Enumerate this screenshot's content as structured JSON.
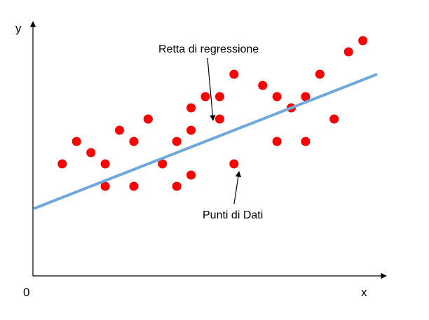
{
  "labels": {
    "y_axis": "y",
    "x_axis": "x",
    "origin": "0",
    "regression_line": "Retta di regressione",
    "data_points": "Punti di Dati"
  },
  "colors": {
    "point": "#ff0000",
    "line": "#6fa8dc",
    "axes": "#000000"
  },
  "chart_data": {
    "type": "scatter",
    "title": "",
    "xlabel": "x",
    "ylabel": "y",
    "grid": false,
    "points": [
      [
        1,
        2
      ],
      [
        1.5,
        3
      ],
      [
        2,
        2.5
      ],
      [
        2.5,
        2
      ],
      [
        3,
        3.5
      ],
      [
        3.5,
        3
      ],
      [
        4,
        4
      ],
      [
        4,
        4
      ],
      [
        2.5,
        1
      ],
      [
        3.5,
        1
      ],
      [
        4.5,
        2
      ],
      [
        5,
        3
      ],
      [
        5,
        1
      ],
      [
        5.5,
        1.5
      ],
      [
        5.5,
        3.5
      ],
      [
        5.5,
        4.5
      ],
      [
        6,
        5
      ],
      [
        6.5,
        4
      ],
      [
        7,
        2
      ],
      [
        6.5,
        5
      ],
      [
        7,
        6
      ],
      [
        8.5,
        3
      ],
      [
        8.5,
        5
      ],
      [
        8,
        5.5
      ],
      [
        9,
        4.5
      ],
      [
        9.5,
        3
      ],
      [
        9.5,
        5
      ],
      [
        10,
        6
      ],
      [
        10.5,
        4
      ],
      [
        11,
        7
      ],
      [
        11.5,
        7.5
      ]
    ],
    "regression_line": {
      "from": [
        0,
        0
      ],
      "to": [
        12,
        6
      ]
    }
  }
}
